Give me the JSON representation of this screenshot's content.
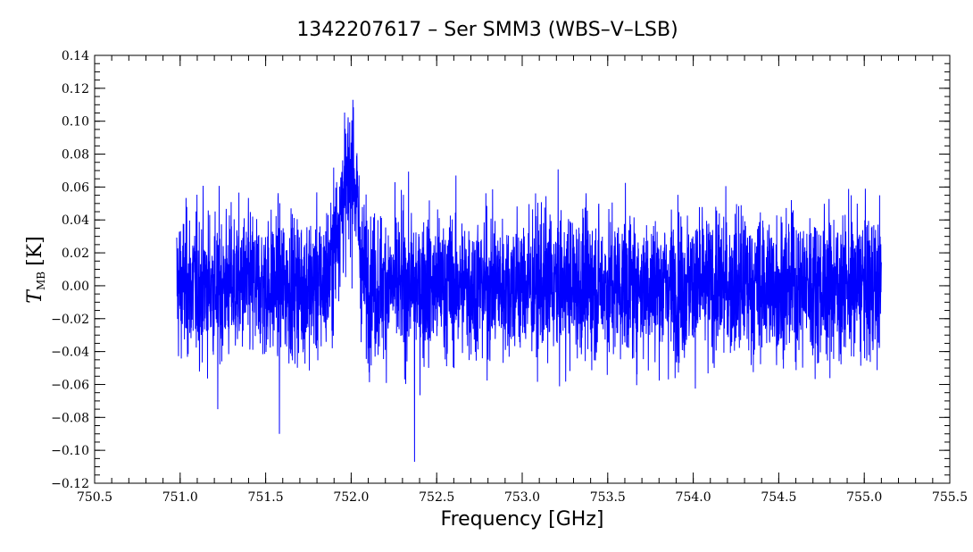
{
  "chart_data": {
    "type": "line",
    "title": "1342207617 – Ser SMM3 (WBS–V–LSB)",
    "xlabel": "Frequency [GHz]",
    "ylabel": {
      "symbol": "T",
      "subscript": "MB",
      "unit": "[K]"
    },
    "xlim": [
      750.5,
      755.5
    ],
    "ylim": [
      -0.12,
      0.14
    ],
    "x_ticks": [
      "750.5",
      "751.0",
      "751.5",
      "752.0",
      "752.5",
      "753.0",
      "753.5",
      "754.0",
      "754.5",
      "755.0",
      "755.5"
    ],
    "y_ticks": [
      "−0.12",
      "−0.10",
      "−0.08",
      "−0.06",
      "−0.04",
      "−0.02",
      "0.00",
      "0.02",
      "0.04",
      "0.06",
      "0.08",
      "0.10",
      "0.12",
      "0.14"
    ],
    "grid": false,
    "series": [
      {
        "color": "#0000ff",
        "x_range": [
          750.98,
          755.1
        ],
        "noise_rms": 0.022,
        "features": [
          {
            "center": 751.97,
            "width": 0.05,
            "peak": 0.058
          },
          {
            "center": 752.02,
            "width": 0.02,
            "peak": 0.03
          }
        ],
        "notable_points": [
          {
            "x": 752.01,
            "y": 0.113
          },
          {
            "x": 752.37,
            "y": -0.107
          },
          {
            "x": 751.58,
            "y": -0.09
          },
          {
            "x": 751.22,
            "y": -0.075
          }
        ]
      }
    ]
  }
}
